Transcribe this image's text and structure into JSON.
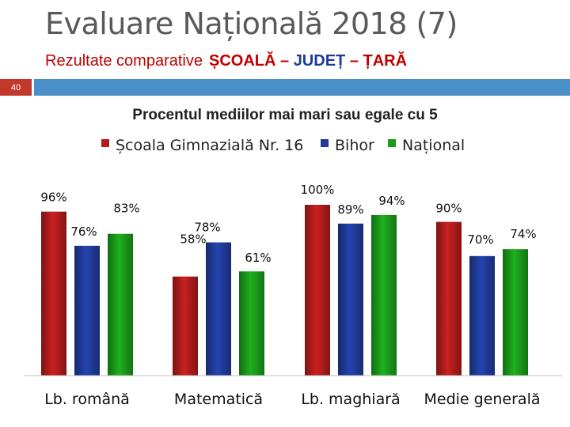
{
  "slide": {
    "title": "Evaluare Națională 2018 (7)",
    "subtitle_prefix": "Rezultate comparative",
    "subtitle_school": "ȘCOALĂ",
    "subtitle_sep": "–",
    "subtitle_county": "JUDEȚ",
    "subtitle_country": "ȚARĂ",
    "number": "40"
  },
  "colors": {
    "school": "#b01c1c",
    "county": "#1f3b99",
    "national": "#1a9a1a",
    "accent_bar": "#4a8fc8"
  },
  "chart_data": {
    "type": "bar",
    "title": "Procentul mediilor mai mari sau egale cu 5",
    "legend_position": "top",
    "categories": [
      "Lb. română",
      "Matematică",
      "Lb. maghiară",
      "Medie generală"
    ],
    "series": [
      {
        "name": "Școala Gimnazială Nr. 16",
        "values": [
          96,
          58,
          100,
          90
        ],
        "labels": [
          "96%",
          "58%",
          "100%",
          "90%"
        ]
      },
      {
        "name": "Bihor",
        "values": [
          76,
          78,
          89,
          70
        ],
        "labels": [
          "76%",
          "78%",
          "89%",
          "70%"
        ]
      },
      {
        "name": "Național",
        "values": [
          83,
          61,
          94,
          74
        ],
        "labels": [
          "83%",
          "61%",
          "94%",
          "74%"
        ]
      }
    ],
    "ylim": [
      0,
      100
    ],
    "grid": false,
    "xlabel": "",
    "ylabel": ""
  }
}
